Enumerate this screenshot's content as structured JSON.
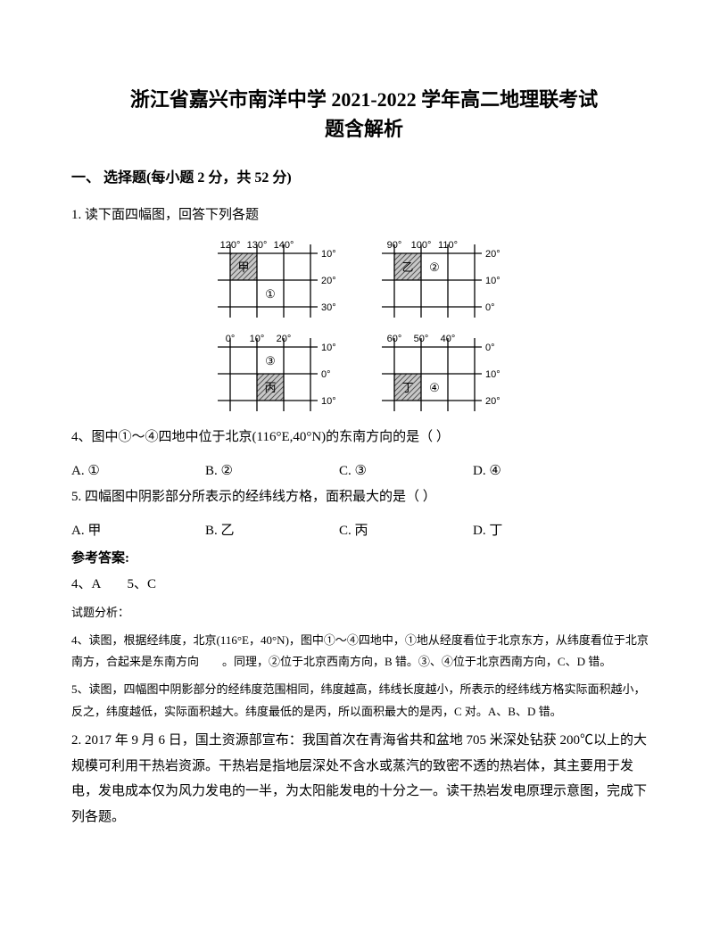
{
  "title_line1": "浙江省嘉兴市南洋中学 2021-2022 学年高二地理联考试",
  "title_line2": "题含解析",
  "section_header": "一、 选择题(每小题 2 分，共 52 分)",
  "q1_intro": "1. 读下面四幅图，回答下列各题",
  "figures": {
    "jia": {
      "name": "甲",
      "lons": [
        "120°",
        "130°",
        "140°"
      ],
      "lats": [
        "10°",
        "20°",
        "30°"
      ],
      "shade_cell": [
        0,
        0
      ],
      "marker": "①",
      "marker_cell": [
        1,
        1
      ],
      "lat_order": "top_low"
    },
    "yi": {
      "name": "乙",
      "lons": [
        "90°",
        "100°",
        "110°"
      ],
      "lats": [
        "20°",
        "10°",
        "0°"
      ],
      "shade_cell": [
        0,
        0
      ],
      "marker": "②",
      "marker_cell": [
        1,
        0
      ]
    },
    "bing": {
      "name": "丙",
      "lons": [
        "0°",
        "10°",
        "20°"
      ],
      "lats": [
        "10°",
        "0°",
        "10°"
      ],
      "shade_cell": [
        1,
        1
      ],
      "marker": "③",
      "marker_cell": [
        1,
        0
      ]
    },
    "ding": {
      "name": "丁",
      "lons": [
        "60°",
        "50°",
        "40°"
      ],
      "lats": [
        "0°",
        "10°",
        "20°"
      ],
      "shade_cell": [
        0,
        1
      ],
      "marker": "④",
      "marker_cell": [
        1,
        1
      ]
    }
  },
  "q4_text": "4、图中①～④四地中位于北京(116°E,40°N)的东南方向的是（ ）",
  "q4_opts": {
    "a": "A. ①",
    "b": "B. ②",
    "c": "C. ③",
    "d": "D. ④"
  },
  "q5_text": "5. 四幅图中阴影部分所表示的经纬线方格，面积最大的是（  ）",
  "q5_opts": {
    "a": "A. 甲",
    "b": "B. 乙",
    "c": "C. 丙",
    "d": "D. 丁"
  },
  "answer_header": "参考答案:",
  "answers": "4、A　　5、C",
  "analysis_header": "试题分析：",
  "analysis_4": "4、读图，根据经纬度，北京(116°E，40°N)，图中①～④四地中，①地从经度看位于北京东方，从纬度看位于北京南方，合起来是东南方向　　。同理，②位于北京西南方向，B 错。③、④位于北京西南方向，C、D 错。",
  "analysis_5": "5、读图，四幅图中阴影部分的经纬度范围相同，纬度越高，纬线长度越小，所表示的经纬线方格实际面积越小，反之，纬度越低，实际面积越大。纬度最低的是丙，所以面积最大的是丙，C 对。A、B、D 错。",
  "q2_text": "2. 2017 年 9 月 6 日，国土资源部宣布：我国首次在青海省共和盆地 705 米深处钻获 200℃以上的大规模可利用干热岩资源。干热岩是指地层深处不含水或蒸汽的致密不透的热岩体，其主要用于发电，发电成本仅为风力发电的一半，为太阳能发电的十分之一。读干热岩发电原理示意图，完成下列各题。",
  "style": {
    "grid_stroke": "#000000",
    "grid_stroke_width": 1.3,
    "cell_size": 30,
    "fig_width": 160,
    "fig_height": 95
  }
}
